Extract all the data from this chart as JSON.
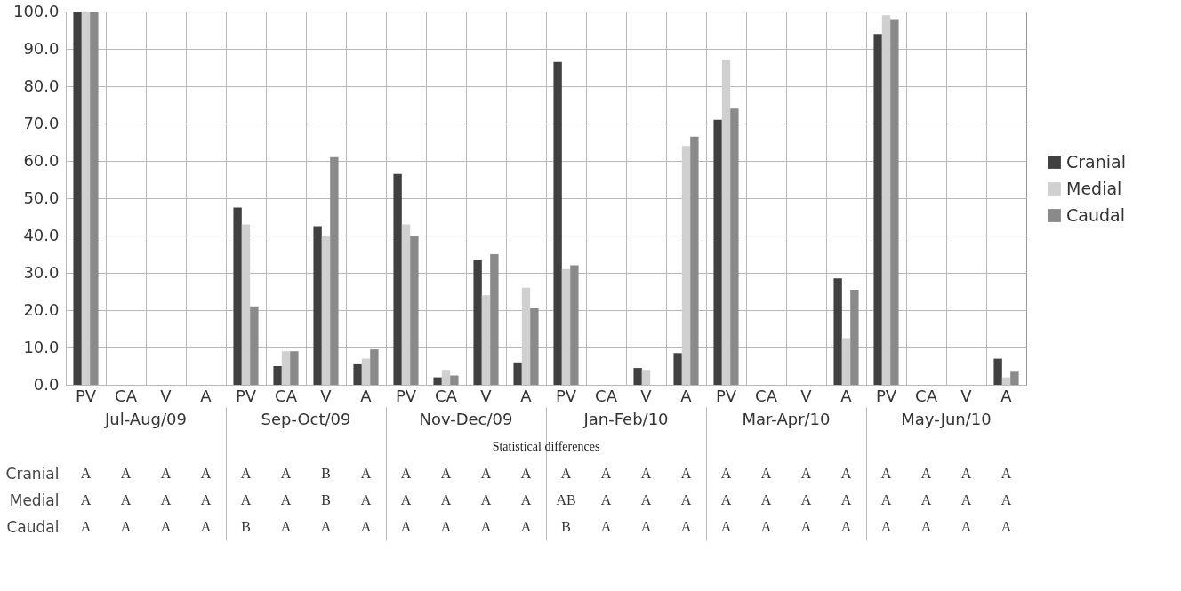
{
  "chart_data": {
    "type": "bar",
    "categories": [
      "PV",
      "CA",
      "V",
      "A",
      "PV",
      "CA",
      "V",
      "A",
      "PV",
      "CA",
      "V",
      "A",
      "PV",
      "CA",
      "V",
      "A",
      "PV",
      "CA",
      "V",
      "A",
      "PV",
      "CA",
      "V",
      "A"
    ],
    "series": [
      {
        "name": "Cranial",
        "color": "#404040",
        "values": [
          100,
          0,
          0,
          0,
          47.5,
          5,
          42.5,
          5.5,
          56.5,
          2,
          33.5,
          6,
          86.5,
          0,
          4.5,
          8.5,
          71,
          0,
          0,
          28.5,
          94,
          0,
          0,
          7
        ]
      },
      {
        "name": "Medial",
        "color": "#d0d0d0",
        "values": [
          100,
          0,
          0,
          0,
          43,
          9,
          40,
          7,
          43,
          4,
          24,
          26,
          31,
          0,
          4,
          64,
          87,
          0,
          0,
          12.5,
          99,
          0,
          0,
          2
        ]
      },
      {
        "name": "Caudal",
        "color": "#8a8a8a",
        "values": [
          100,
          0,
          0,
          0,
          21,
          9,
          61,
          9.5,
          40,
          2.5,
          35,
          20.5,
          32,
          0,
          0,
          66.5,
          74,
          0,
          0,
          25.5,
          98,
          0,
          0,
          3.5
        ]
      }
    ],
    "ylim": [
      0,
      100
    ],
    "yticks": [
      {
        "value": 0,
        "label": "0.0"
      },
      {
        "value": 10,
        "label": "10.0"
      },
      {
        "value": 20,
        "label": "20.0"
      },
      {
        "value": 30,
        "label": "30.0"
      },
      {
        "value": 40,
        "label": "40.0"
      },
      {
        "value": 50,
        "label": "50.0"
      },
      {
        "value": 60,
        "label": "60.0"
      },
      {
        "value": 70,
        "label": "70.0"
      },
      {
        "value": 80,
        "label": "80.0"
      },
      {
        "value": 90,
        "label": "90.0"
      },
      {
        "value": 100,
        "label": "100.0"
      }
    ],
    "grid": true,
    "legend": "right",
    "annotations": [
      "Jul-Aug/09",
      "Sep-Oct/09",
      "Nov-Dec/09",
      "Jan-Feb/10",
      "Mar-Apr/10",
      "May-Jun/10",
      "Statistical differences",
      "Cranial",
      "A",
      "A",
      "A",
      "A",
      "A",
      "A",
      "B",
      "A",
      "A",
      "A",
      "A",
      "A",
      "A",
      "A",
      "A",
      "A",
      "A",
      "A",
      "A",
      "A",
      "A",
      "A",
      "A",
      "A",
      "Medial",
      "A",
      "A",
      "A",
      "A",
      "A",
      "A",
      "B",
      "A",
      "A",
      "A",
      "A",
      "A",
      "AB",
      "A",
      "A",
      "A",
      "A",
      "A",
      "A",
      "A",
      "A",
      "A",
      "A",
      "A",
      "Caudal",
      "A",
      "A",
      "A",
      "A",
      "B",
      "A",
      "A",
      "A",
      "A",
      "A",
      "A",
      "A",
      "B",
      "A",
      "A",
      "A",
      "A",
      "A",
      "A",
      "A",
      "A",
      "A",
      "A",
      "A"
    ]
  }
}
